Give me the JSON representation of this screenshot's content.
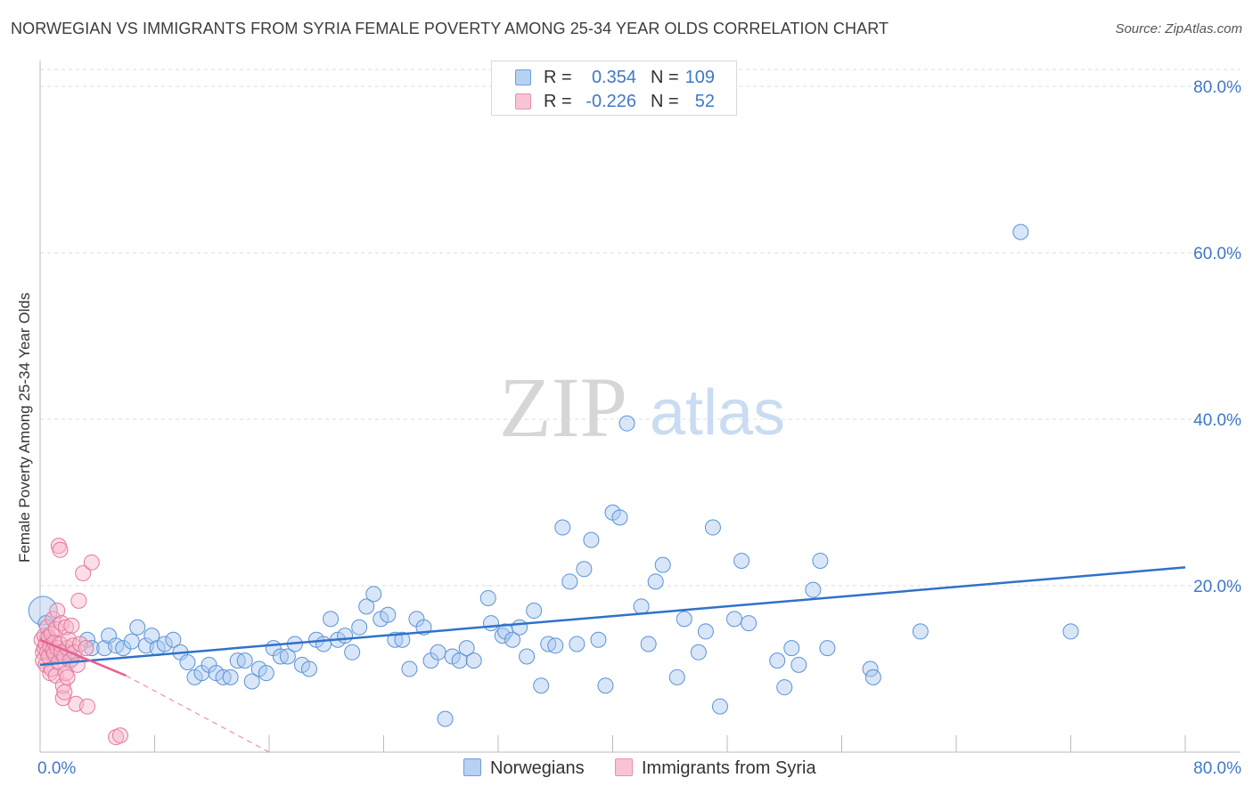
{
  "header": {
    "title": "NORWEGIAN VS IMMIGRANTS FROM SYRIA FEMALE POVERTY AMONG 25-34 YEAR OLDS CORRELATION CHART",
    "source": "Source: ZipAtlas.com"
  },
  "watermark": {
    "zip": "ZIP",
    "atlas": "atlas"
  },
  "legend_top": {
    "rows": [
      {
        "r_label": "R =",
        "r_value": "0.354",
        "n_label": "N =",
        "n_value": "109"
      },
      {
        "r_label": "R =",
        "r_value": "-0.226",
        "n_label": "N =",
        "n_value": "52"
      }
    ]
  },
  "legend_bottom": {
    "series1": "Norwegians",
    "series2": "Immigrants from Syria"
  },
  "colors": {
    "blue_fill": "#a9c8ef",
    "blue_stroke": "#5b93d6",
    "blue_line": "#2f72c9",
    "pink_fill": "#f6b5c9",
    "pink_stroke": "#e4799c",
    "pink_line": "#e8608f",
    "axis_text": "#3f78c8",
    "grid": "#dddddd"
  },
  "chart_data": {
    "type": "scatter",
    "title": "NORWEGIAN VS IMMIGRANTS FROM SYRIA FEMALE POVERTY AMONG 25-34 YEAR OLDS CORRELATION CHART",
    "xlabel": "",
    "ylabel": "Female Poverty Among 25-34 Year Olds",
    "xlim": [
      0,
      84
    ],
    "ylim": [
      0,
      81
    ],
    "x_tick_labels": [
      "0.0%",
      "80.0%"
    ],
    "y_ticks": [
      20,
      40,
      60,
      80
    ],
    "y_tick_labels": [
      "20.0%",
      "40.0%",
      "60.0%",
      "80.0%"
    ],
    "grid": true,
    "series": [
      {
        "name": "Norwegians",
        "r": 0.354,
        "n": 109,
        "trend": {
          "x": [
            0,
            80
          ],
          "y": [
            10.5,
            22.2
          ],
          "extend_dashed_to": null
        },
        "points": [
          [
            0.2,
            17
          ],
          [
            0.4,
            15.5
          ],
          [
            0.5,
            13.8
          ],
          [
            0.8,
            12.5
          ],
          [
            1.2,
            12
          ],
          [
            1.6,
            11.5
          ],
          [
            2.0,
            12
          ],
          [
            2.2,
            11.2
          ],
          [
            3.3,
            13.5
          ],
          [
            3.6,
            12.5
          ],
          [
            4.5,
            12.5
          ],
          [
            4.8,
            14
          ],
          [
            5.3,
            12.8
          ],
          [
            5.8,
            12.5
          ],
          [
            6.4,
            13.3
          ],
          [
            6.8,
            15
          ],
          [
            7.4,
            12.8
          ],
          [
            7.8,
            14
          ],
          [
            8.2,
            12.5
          ],
          [
            8.7,
            13
          ],
          [
            9.3,
            13.5
          ],
          [
            9.8,
            12
          ],
          [
            10.3,
            10.8
          ],
          [
            10.8,
            9
          ],
          [
            11.3,
            9.5
          ],
          [
            11.8,
            10.5
          ],
          [
            12.3,
            9.5
          ],
          [
            12.8,
            9
          ],
          [
            13.3,
            9
          ],
          [
            13.8,
            11
          ],
          [
            14.3,
            11
          ],
          [
            14.8,
            8.5
          ],
          [
            15.3,
            10
          ],
          [
            15.8,
            9.5
          ],
          [
            16.3,
            12.5
          ],
          [
            16.8,
            11.5
          ],
          [
            17.3,
            11.5
          ],
          [
            17.8,
            13
          ],
          [
            18.3,
            10.5
          ],
          [
            18.8,
            10
          ],
          [
            19.3,
            13.5
          ],
          [
            19.8,
            13
          ],
          [
            20.3,
            16
          ],
          [
            20.8,
            13.5
          ],
          [
            21.3,
            14
          ],
          [
            21.8,
            12
          ],
          [
            22.3,
            15
          ],
          [
            22.8,
            17.5
          ],
          [
            23.3,
            19
          ],
          [
            23.8,
            16
          ],
          [
            24.3,
            16.5
          ],
          [
            24.8,
            13.5
          ],
          [
            25.3,
            13.5
          ],
          [
            25.8,
            10
          ],
          [
            26.3,
            16
          ],
          [
            26.8,
            15
          ],
          [
            27.3,
            11
          ],
          [
            27.8,
            12
          ],
          [
            28.3,
            4
          ],
          [
            28.8,
            11.5
          ],
          [
            29.3,
            11
          ],
          [
            29.8,
            12.5
          ],
          [
            30.3,
            11
          ],
          [
            31.3,
            18.5
          ],
          [
            31.5,
            15.5
          ],
          [
            32.3,
            14
          ],
          [
            32.5,
            14.5
          ],
          [
            33.0,
            13.5
          ],
          [
            33.5,
            15
          ],
          [
            34.0,
            11.5
          ],
          [
            34.5,
            17
          ],
          [
            35.0,
            8
          ],
          [
            35.5,
            13
          ],
          [
            36.0,
            12.8
          ],
          [
            36.5,
            27
          ],
          [
            37.0,
            20.5
          ],
          [
            37.5,
            13
          ],
          [
            38.0,
            22
          ],
          [
            38.5,
            25.5
          ],
          [
            39.0,
            13.5
          ],
          [
            39.5,
            8
          ],
          [
            40.0,
            28.8
          ],
          [
            40.5,
            28.2
          ],
          [
            41.0,
            39.5
          ],
          [
            42.0,
            17.5
          ],
          [
            42.5,
            13
          ],
          [
            43.0,
            20.5
          ],
          [
            43.5,
            22.5
          ],
          [
            44.5,
            9
          ],
          [
            45.0,
            16
          ],
          [
            46.0,
            12
          ],
          [
            46.5,
            14.5
          ],
          [
            47.0,
            27
          ],
          [
            47.5,
            5.5
          ],
          [
            48.5,
            16
          ],
          [
            49.0,
            23
          ],
          [
            49.5,
            15.5
          ],
          [
            51.5,
            11
          ],
          [
            52.0,
            7.8
          ],
          [
            52.5,
            12.5
          ],
          [
            53.0,
            10.5
          ],
          [
            54.0,
            19.5
          ],
          [
            54.5,
            23
          ],
          [
            55.0,
            12.5
          ],
          [
            58.0,
            10
          ],
          [
            58.2,
            9
          ],
          [
            61.5,
            14.5
          ],
          [
            68.5,
            62.5
          ],
          [
            72.0,
            14.5
          ]
        ]
      },
      {
        "name": "Immigrants from Syria",
        "r": -0.226,
        "n": 52,
        "trend": {
          "x": [
            0,
            6.0
          ],
          "y": [
            13.5,
            9.2
          ],
          "extend_dashed_to": [
            16,
            0
          ]
        },
        "points": [
          [
            0.1,
            13.5
          ],
          [
            0.2,
            12
          ],
          [
            0.2,
            11
          ],
          [
            0.3,
            14
          ],
          [
            0.3,
            12.5
          ],
          [
            0.4,
            13
          ],
          [
            0.4,
            10.5
          ],
          [
            0.5,
            15
          ],
          [
            0.5,
            12
          ],
          [
            0.6,
            11.5
          ],
          [
            0.6,
            13.8
          ],
          [
            0.7,
            9.5
          ],
          [
            0.7,
            12.8
          ],
          [
            0.8,
            14.2
          ],
          [
            0.8,
            10
          ],
          [
            0.9,
            16
          ],
          [
            0.9,
            12.2
          ],
          [
            1.0,
            11.8
          ],
          [
            1.0,
            13.2
          ],
          [
            1.1,
            9.2
          ],
          [
            1.1,
            14.8
          ],
          [
            1.2,
            12.5
          ],
          [
            1.2,
            17
          ],
          [
            1.3,
            10.8
          ],
          [
            1.3,
            24.8
          ],
          [
            1.4,
            24.3
          ],
          [
            1.4,
            13
          ],
          [
            1.5,
            15.5
          ],
          [
            1.5,
            12
          ],
          [
            1.6,
            6.5
          ],
          [
            1.6,
            8
          ],
          [
            1.7,
            7.2
          ],
          [
            1.7,
            11.5
          ],
          [
            1.8,
            9.5
          ],
          [
            1.8,
            15
          ],
          [
            1.9,
            12.5
          ],
          [
            1.9,
            9
          ],
          [
            2.0,
            13.5
          ],
          [
            2.1,
            11
          ],
          [
            2.2,
            15.2
          ],
          [
            2.3,
            12.8
          ],
          [
            2.4,
            12
          ],
          [
            2.5,
            5.8
          ],
          [
            2.6,
            10.5
          ],
          [
            2.7,
            18.2
          ],
          [
            2.8,
            13
          ],
          [
            3.0,
            21.5
          ],
          [
            3.2,
            12.5
          ],
          [
            3.3,
            5.5
          ],
          [
            3.6,
            22.8
          ],
          [
            5.3,
            1.8
          ],
          [
            5.6,
            2
          ]
        ]
      }
    ]
  }
}
